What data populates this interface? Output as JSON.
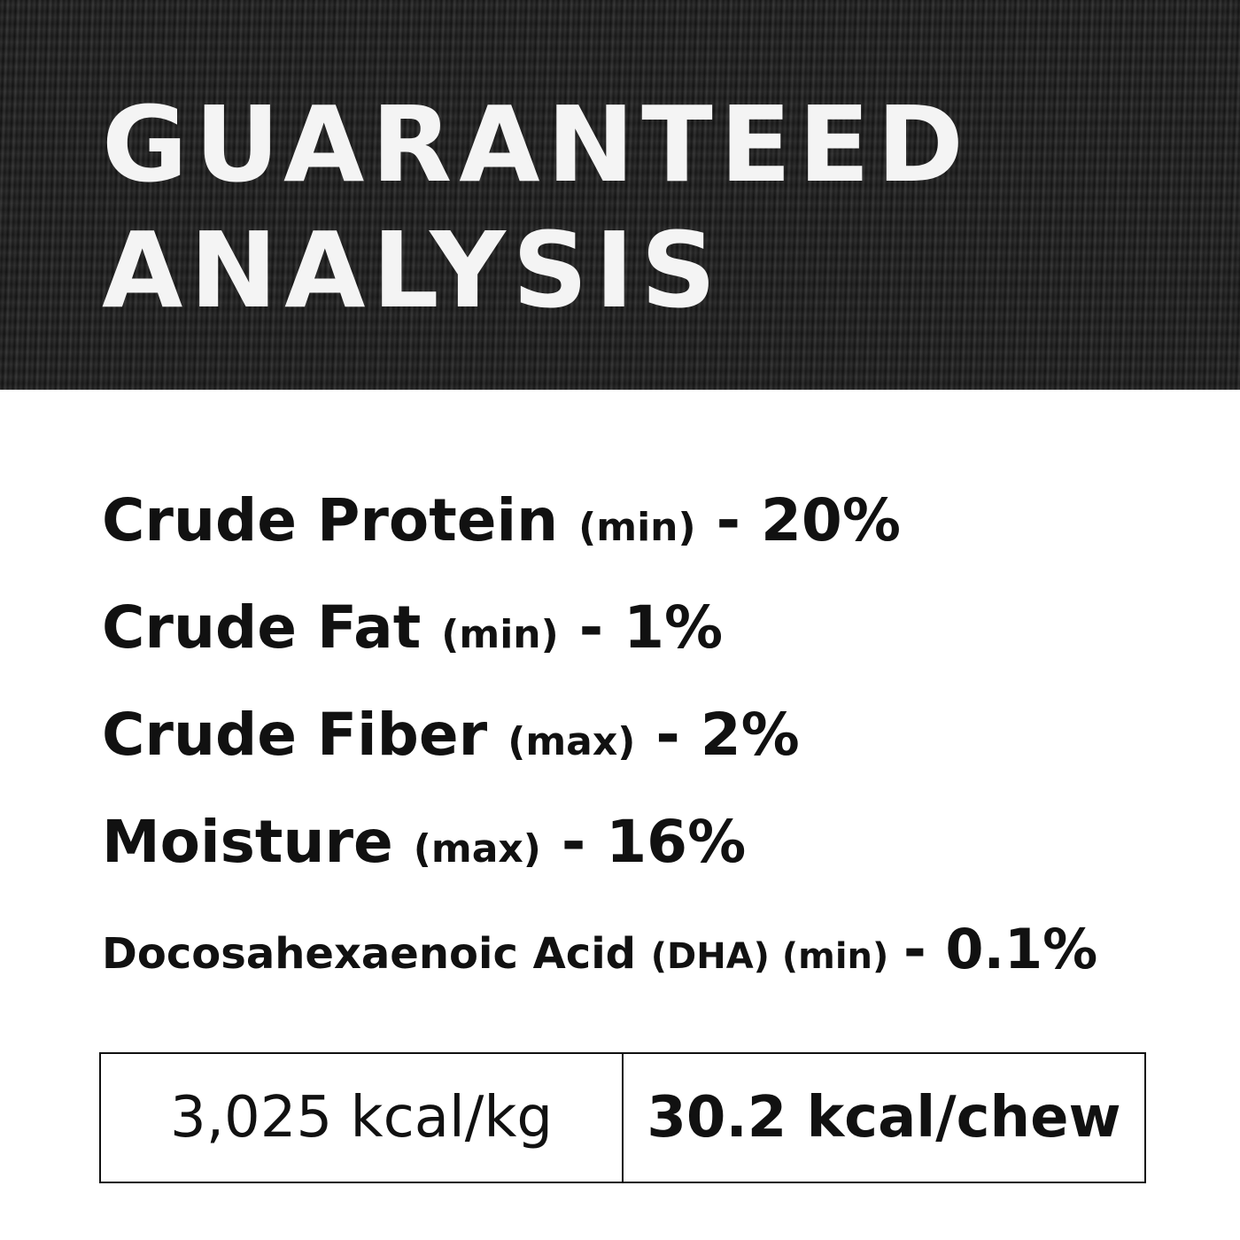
{
  "header": {
    "title_line1": "GUARANTEED",
    "title_line2": "ANALYSIS"
  },
  "analysis": [
    {
      "name": "Crude Protein",
      "qualifier": "(min)",
      "value": "- 20%"
    },
    {
      "name": "Crude Fat",
      "qualifier": "(min)",
      "value": "- 1%"
    },
    {
      "name": "Crude Fiber",
      "qualifier": "(max)",
      "value": "- 2%"
    },
    {
      "name": "Moisture",
      "qualifier": "(max)",
      "value": "- 16%"
    },
    {
      "name": "Docosahexaenoic Acid",
      "qualifier": "(DHA) (min)",
      "value": "- 0.1%"
    }
  ],
  "calories": {
    "per_kg": "3,025 kcal/kg",
    "per_chew": "30.2 kcal/chew"
  }
}
